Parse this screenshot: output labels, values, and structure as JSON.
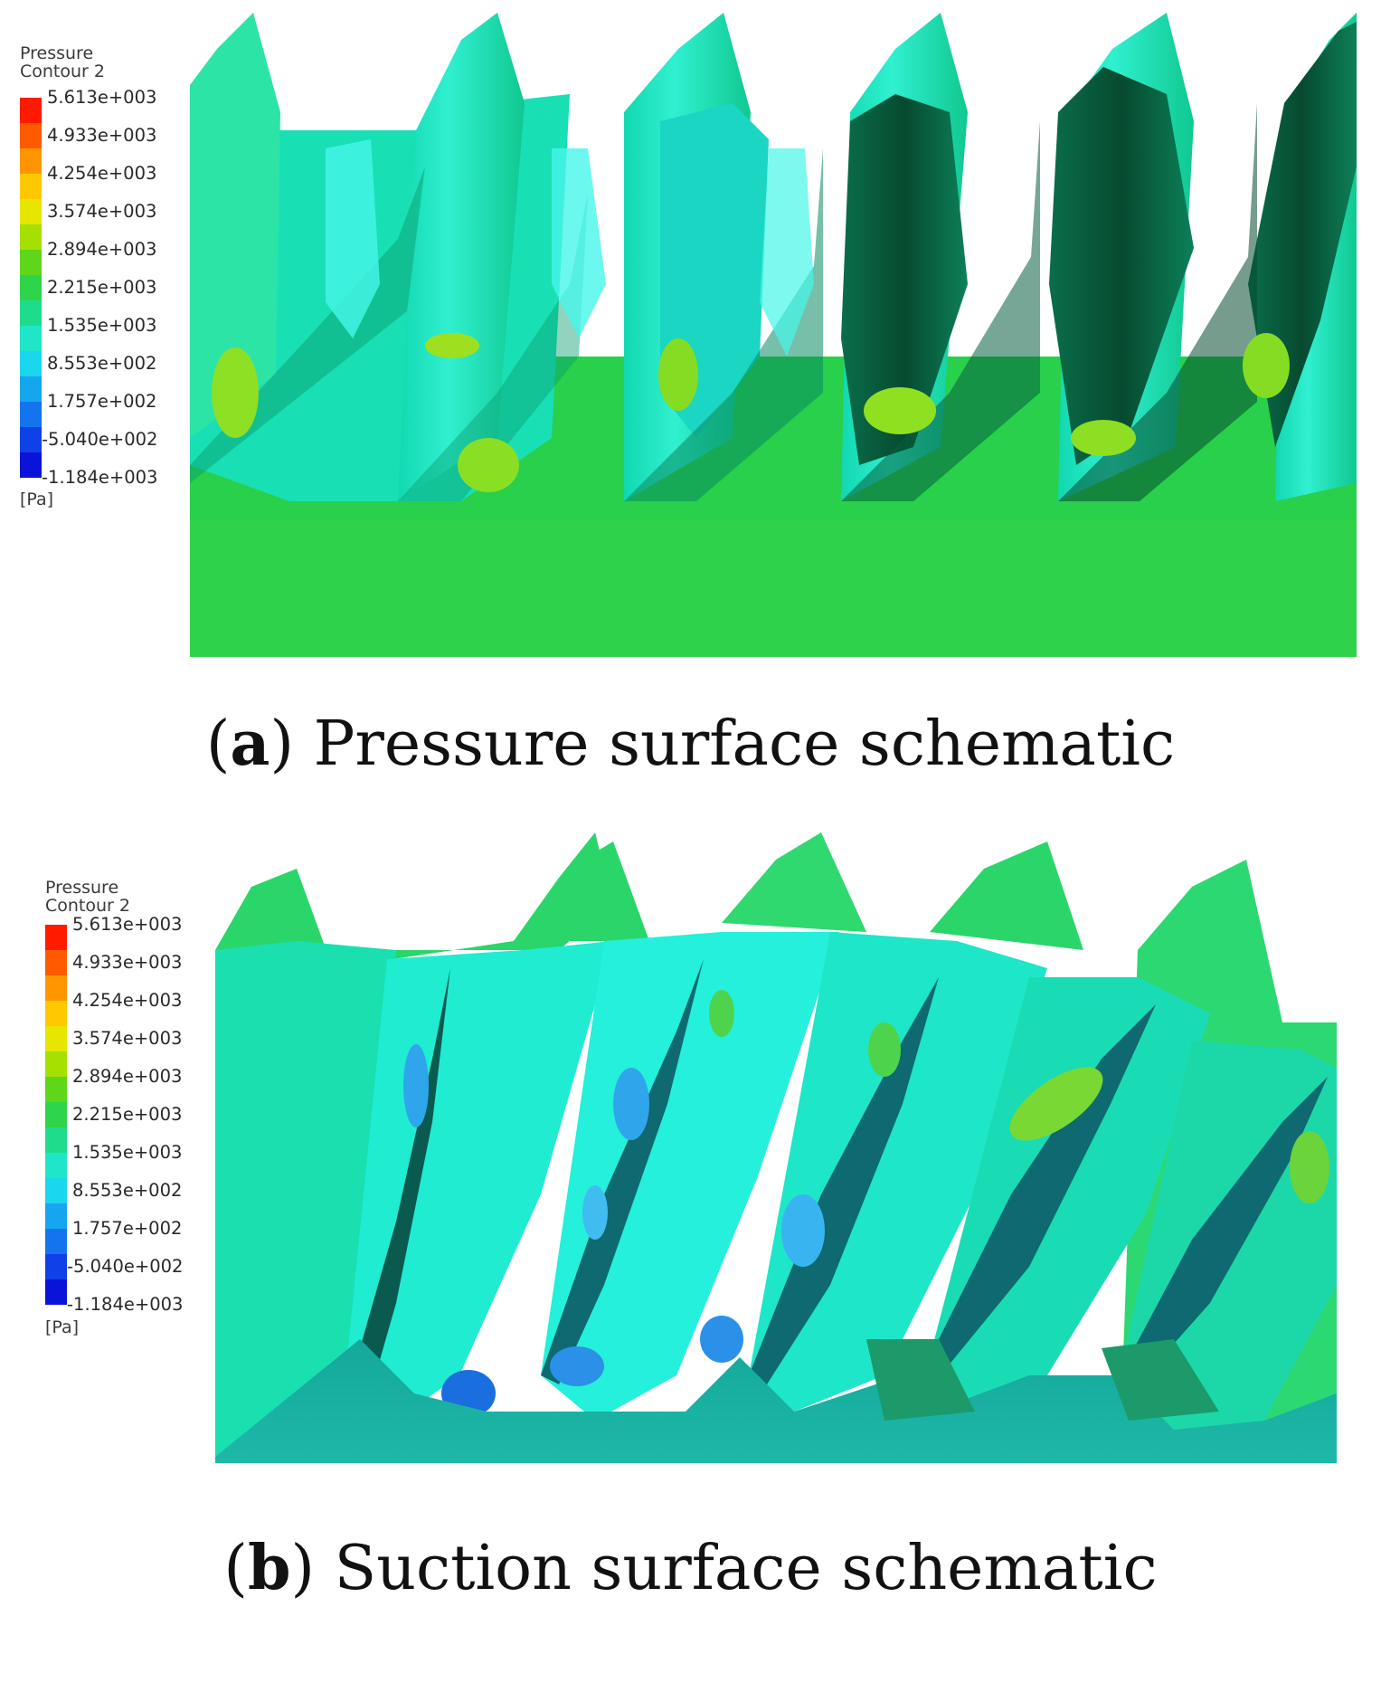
{
  "panels": [
    {
      "legend": {
        "title_line1": "Pressure",
        "title_line2": "Contour 2",
        "ticks": [
          "5.613e+003",
          "4.933e+003",
          "4.254e+003",
          "3.574e+003",
          "2.894e+003",
          "2.215e+003",
          "1.535e+003",
          "8.553e+002",
          "1.757e+002",
          "-5.040e+002",
          "-1.184e+003"
        ],
        "unit": "[Pa]"
      },
      "caption": {
        "letter": "a",
        "text": "Pressure surface schematic"
      }
    },
    {
      "legend": {
        "title_line1": "Pressure",
        "title_line2": "Contour 2",
        "ticks": [
          "5.613e+003",
          "4.933e+003",
          "4.254e+003",
          "3.574e+003",
          "2.894e+003",
          "2.215e+003",
          "1.535e+003",
          "8.553e+002",
          "1.757e+002",
          "-5.040e+002",
          "-1.184e+003"
        ],
        "unit": "[Pa]"
      },
      "caption": {
        "letter": "b",
        "text": "Suction surface schematic"
      }
    }
  ],
  "colormap": [
    "#ff1a00",
    "#ff5a00",
    "#ff9600",
    "#ffc800",
    "#e6e600",
    "#a6e000",
    "#5ed61a",
    "#2ed44a",
    "#1fdc8c",
    "#1fe6c8",
    "#1ad6ee",
    "#16a6ee",
    "#1474ee",
    "#1040e8",
    "#0a14d8"
  ]
}
